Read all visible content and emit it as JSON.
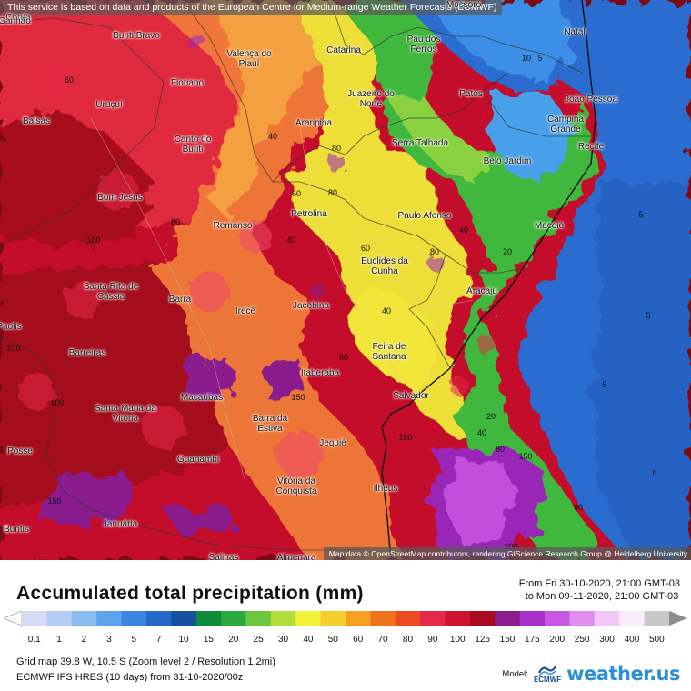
{
  "notice": "This service is based on data and products of the European Centre for Medium-range Weather Forecasts (ECMWF)",
  "attribution": "Map data © OpenStreetMap contributors, rendering GIScience Research Group @ Heidelberg University",
  "title": "Accumulated total precipitation (mm)",
  "range": {
    "from": "From Fri 30-10-2020, 21:00 GMT-03",
    "to": "to Mon 09-11-2020, 21:00 GMT-03"
  },
  "legend": {
    "labels": [
      "0.1",
      "1",
      "2",
      "3",
      "5",
      "7",
      "10",
      "15",
      "20",
      "25",
      "30",
      "40",
      "50",
      "60",
      "70",
      "80",
      "90",
      "100",
      "125",
      "150",
      "175",
      "200",
      "250",
      "300",
      "400",
      "500"
    ],
    "colors": [
      "#d6dcf6",
      "#b3cdf4",
      "#8bbcf1",
      "#5ea3ec",
      "#3a87e0",
      "#2468c8",
      "#14509e",
      "#0f8a3a",
      "#2aaa3c",
      "#6cc63e",
      "#b4dc3c",
      "#f2f23a",
      "#f5cf2e",
      "#f4a020",
      "#f07420",
      "#ee4a22",
      "#e8284a",
      "#d01230",
      "#a80a1e",
      "#8a1e8e",
      "#a832c8",
      "#c858e2",
      "#e08cf0",
      "#f2c8f8",
      "#f8eefa",
      "#c8c8c8"
    ]
  },
  "info": {
    "grid": "Grid map 39.8 W, 10.5 S (Zoom level 2 / Resolution 1.2mi)",
    "model_run": "ECMWF IFS HRES (10 days) from 31-10-2020/00z"
  },
  "logos": {
    "model_label": "Model:",
    "ecmwf": "ECMWF",
    "brand": "weather.us"
  },
  "map": {
    "cities": [
      "Corda",
      "Buriti Bravo",
      "Catarina",
      "Pau dos Ferros",
      "Natal",
      "Mossoró",
      "Valença do Piauí",
      "Floriano",
      "Uruçuí",
      "Balsas",
      "Juazeiro do Norte",
      "Patos",
      "João Pessoa",
      "Araripina",
      "Campina Grande",
      "Canto do Buriti",
      "Serra Talhada",
      "Recife",
      "Belo Jardim",
      "Bom Jesus",
      "Petrolina",
      "Paulo Afonso",
      "Maceió",
      "Remanso",
      "Euclides da Cunha",
      "Santa Rita de Cássia",
      "Aracaju",
      "Barra",
      "Jacobina",
      "Irecê",
      "Barreiras",
      "Feira de Santana",
      "Itaberaba",
      "Salvador",
      "Santa Maria da Vitória",
      "Macaúbas",
      "Barra da Estiva",
      "Posse",
      "Jequié",
      "Guanambi",
      "Vitória da Conquista",
      "Ilhéus",
      "Buritis",
      "Januária",
      "Salinas",
      "Almenara",
      "Paolis",
      "Ganhão"
    ],
    "contour_labels": [
      "5",
      "10",
      "20",
      "40",
      "60",
      "80",
      "100",
      "150",
      "200"
    ]
  }
}
